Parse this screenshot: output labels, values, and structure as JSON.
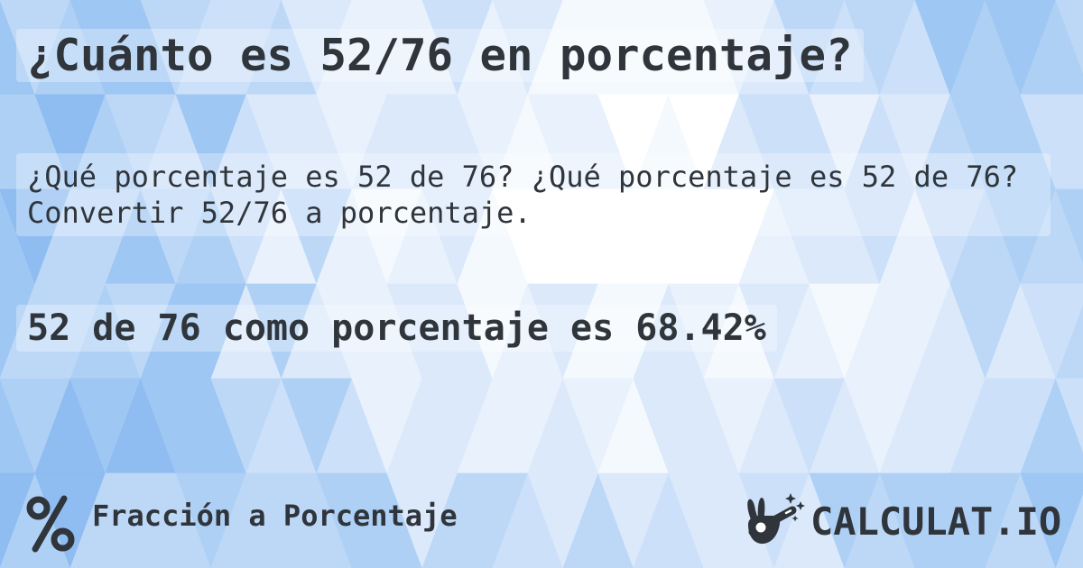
{
  "card": {
    "title": "¿Cuánto es 52/76 en porcentaje?",
    "description": "¿Qué porcentaje es 52 de 76? ¿Qué porcentaje es 52 de 76? Convertir 52/76 a porcentaje.",
    "answer": "52 de 76 como porcentaje es 68.42%"
  },
  "footer": {
    "category_icon": "percent-icon",
    "category_label": "Fracción a Porcentaje",
    "brand": {
      "logo_icon": "magic-wand-hand-icon",
      "logo_text": "CALCULAT.IO"
    }
  },
  "colors": {
    "text": "#2f353b",
    "band": "rgba(255,255,255,0.30)",
    "background_palette": [
      "#8fbcf1",
      "#9fc7f3",
      "#aed0f5",
      "#bdd8f7",
      "#cce0f9",
      "#dbe9fb",
      "#e8f1fc",
      "#f4f9fe",
      "#ffffff"
    ]
  }
}
